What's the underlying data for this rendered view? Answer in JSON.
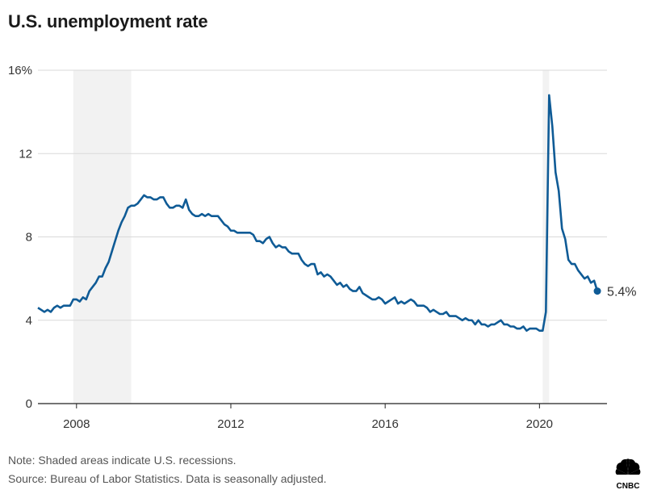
{
  "title": "U.S. unemployment rate",
  "footer": {
    "note": "Note: Shaded areas indicate U.S. recessions.",
    "source": "Source: Bureau of Labor Statistics. Data is seasonally adjusted."
  },
  "logo": {
    "text": "CNBC",
    "icon": "nbc-peacock-icon"
  },
  "colors": {
    "line": "#0f5b96",
    "recession": "#f2f2f2",
    "grid": "#d9d9d9"
  },
  "chart_data": {
    "type": "line",
    "title": "U.S. unemployment rate",
    "xlabel": "",
    "ylabel": "",
    "x_ticks": [
      "2008",
      "2012",
      "2016",
      "2020"
    ],
    "y_ticks": [
      "0",
      "4",
      "8",
      "12",
      "16%"
    ],
    "ylim": [
      0,
      16
    ],
    "xlim": [
      "2007-01",
      "2021-10"
    ],
    "grid": "horizontal",
    "recessions": [
      {
        "start": "2007-12",
        "end": "2009-06"
      },
      {
        "start": "2020-02",
        "end": "2020-04"
      }
    ],
    "end_label": "5.4%",
    "series": [
      {
        "start": "2007-01",
        "frequency": "monthly",
        "values": [
          4.6,
          4.5,
          4.4,
          4.5,
          4.4,
          4.6,
          4.7,
          4.6,
          4.7,
          4.7,
          4.7,
          5.0,
          5.0,
          4.9,
          5.1,
          5.0,
          5.4,
          5.6,
          5.8,
          6.1,
          6.1,
          6.5,
          6.8,
          7.3,
          7.8,
          8.3,
          8.7,
          9.0,
          9.4,
          9.5,
          9.5,
          9.6,
          9.8,
          10.0,
          9.9,
          9.9,
          9.8,
          9.8,
          9.9,
          9.9,
          9.6,
          9.4,
          9.4,
          9.5,
          9.5,
          9.4,
          9.8,
          9.3,
          9.1,
          9.0,
          9.0,
          9.1,
          9.0,
          9.1,
          9.0,
          9.0,
          9.0,
          8.8,
          8.6,
          8.5,
          8.3,
          8.3,
          8.2,
          8.2,
          8.2,
          8.2,
          8.2,
          8.1,
          7.8,
          7.8,
          7.7,
          7.9,
          8.0,
          7.7,
          7.5,
          7.6,
          7.5,
          7.5,
          7.3,
          7.2,
          7.2,
          7.2,
          6.9,
          6.7,
          6.6,
          6.7,
          6.7,
          6.2,
          6.3,
          6.1,
          6.2,
          6.1,
          5.9,
          5.7,
          5.8,
          5.6,
          5.7,
          5.5,
          5.4,
          5.4,
          5.6,
          5.3,
          5.2,
          5.1,
          5.0,
          5.0,
          5.1,
          5.0,
          4.8,
          4.9,
          5.0,
          5.1,
          4.8,
          4.9,
          4.8,
          4.9,
          5.0,
          4.9,
          4.7,
          4.7,
          4.7,
          4.6,
          4.4,
          4.5,
          4.4,
          4.3,
          4.3,
          4.4,
          4.2,
          4.2,
          4.2,
          4.1,
          4.0,
          4.1,
          4.0,
          4.0,
          3.8,
          4.0,
          3.8,
          3.8,
          3.7,
          3.8,
          3.8,
          3.9,
          4.0,
          3.8,
          3.8,
          3.7,
          3.7,
          3.6,
          3.6,
          3.7,
          3.5,
          3.6,
          3.6,
          3.6,
          3.5,
          3.5,
          4.4,
          14.8,
          13.3,
          11.1,
          10.2,
          8.4,
          7.9,
          6.9,
          6.7,
          6.7,
          6.4,
          6.2,
          6.0,
          6.1,
          5.8,
          5.9,
          5.4
        ]
      }
    ]
  }
}
